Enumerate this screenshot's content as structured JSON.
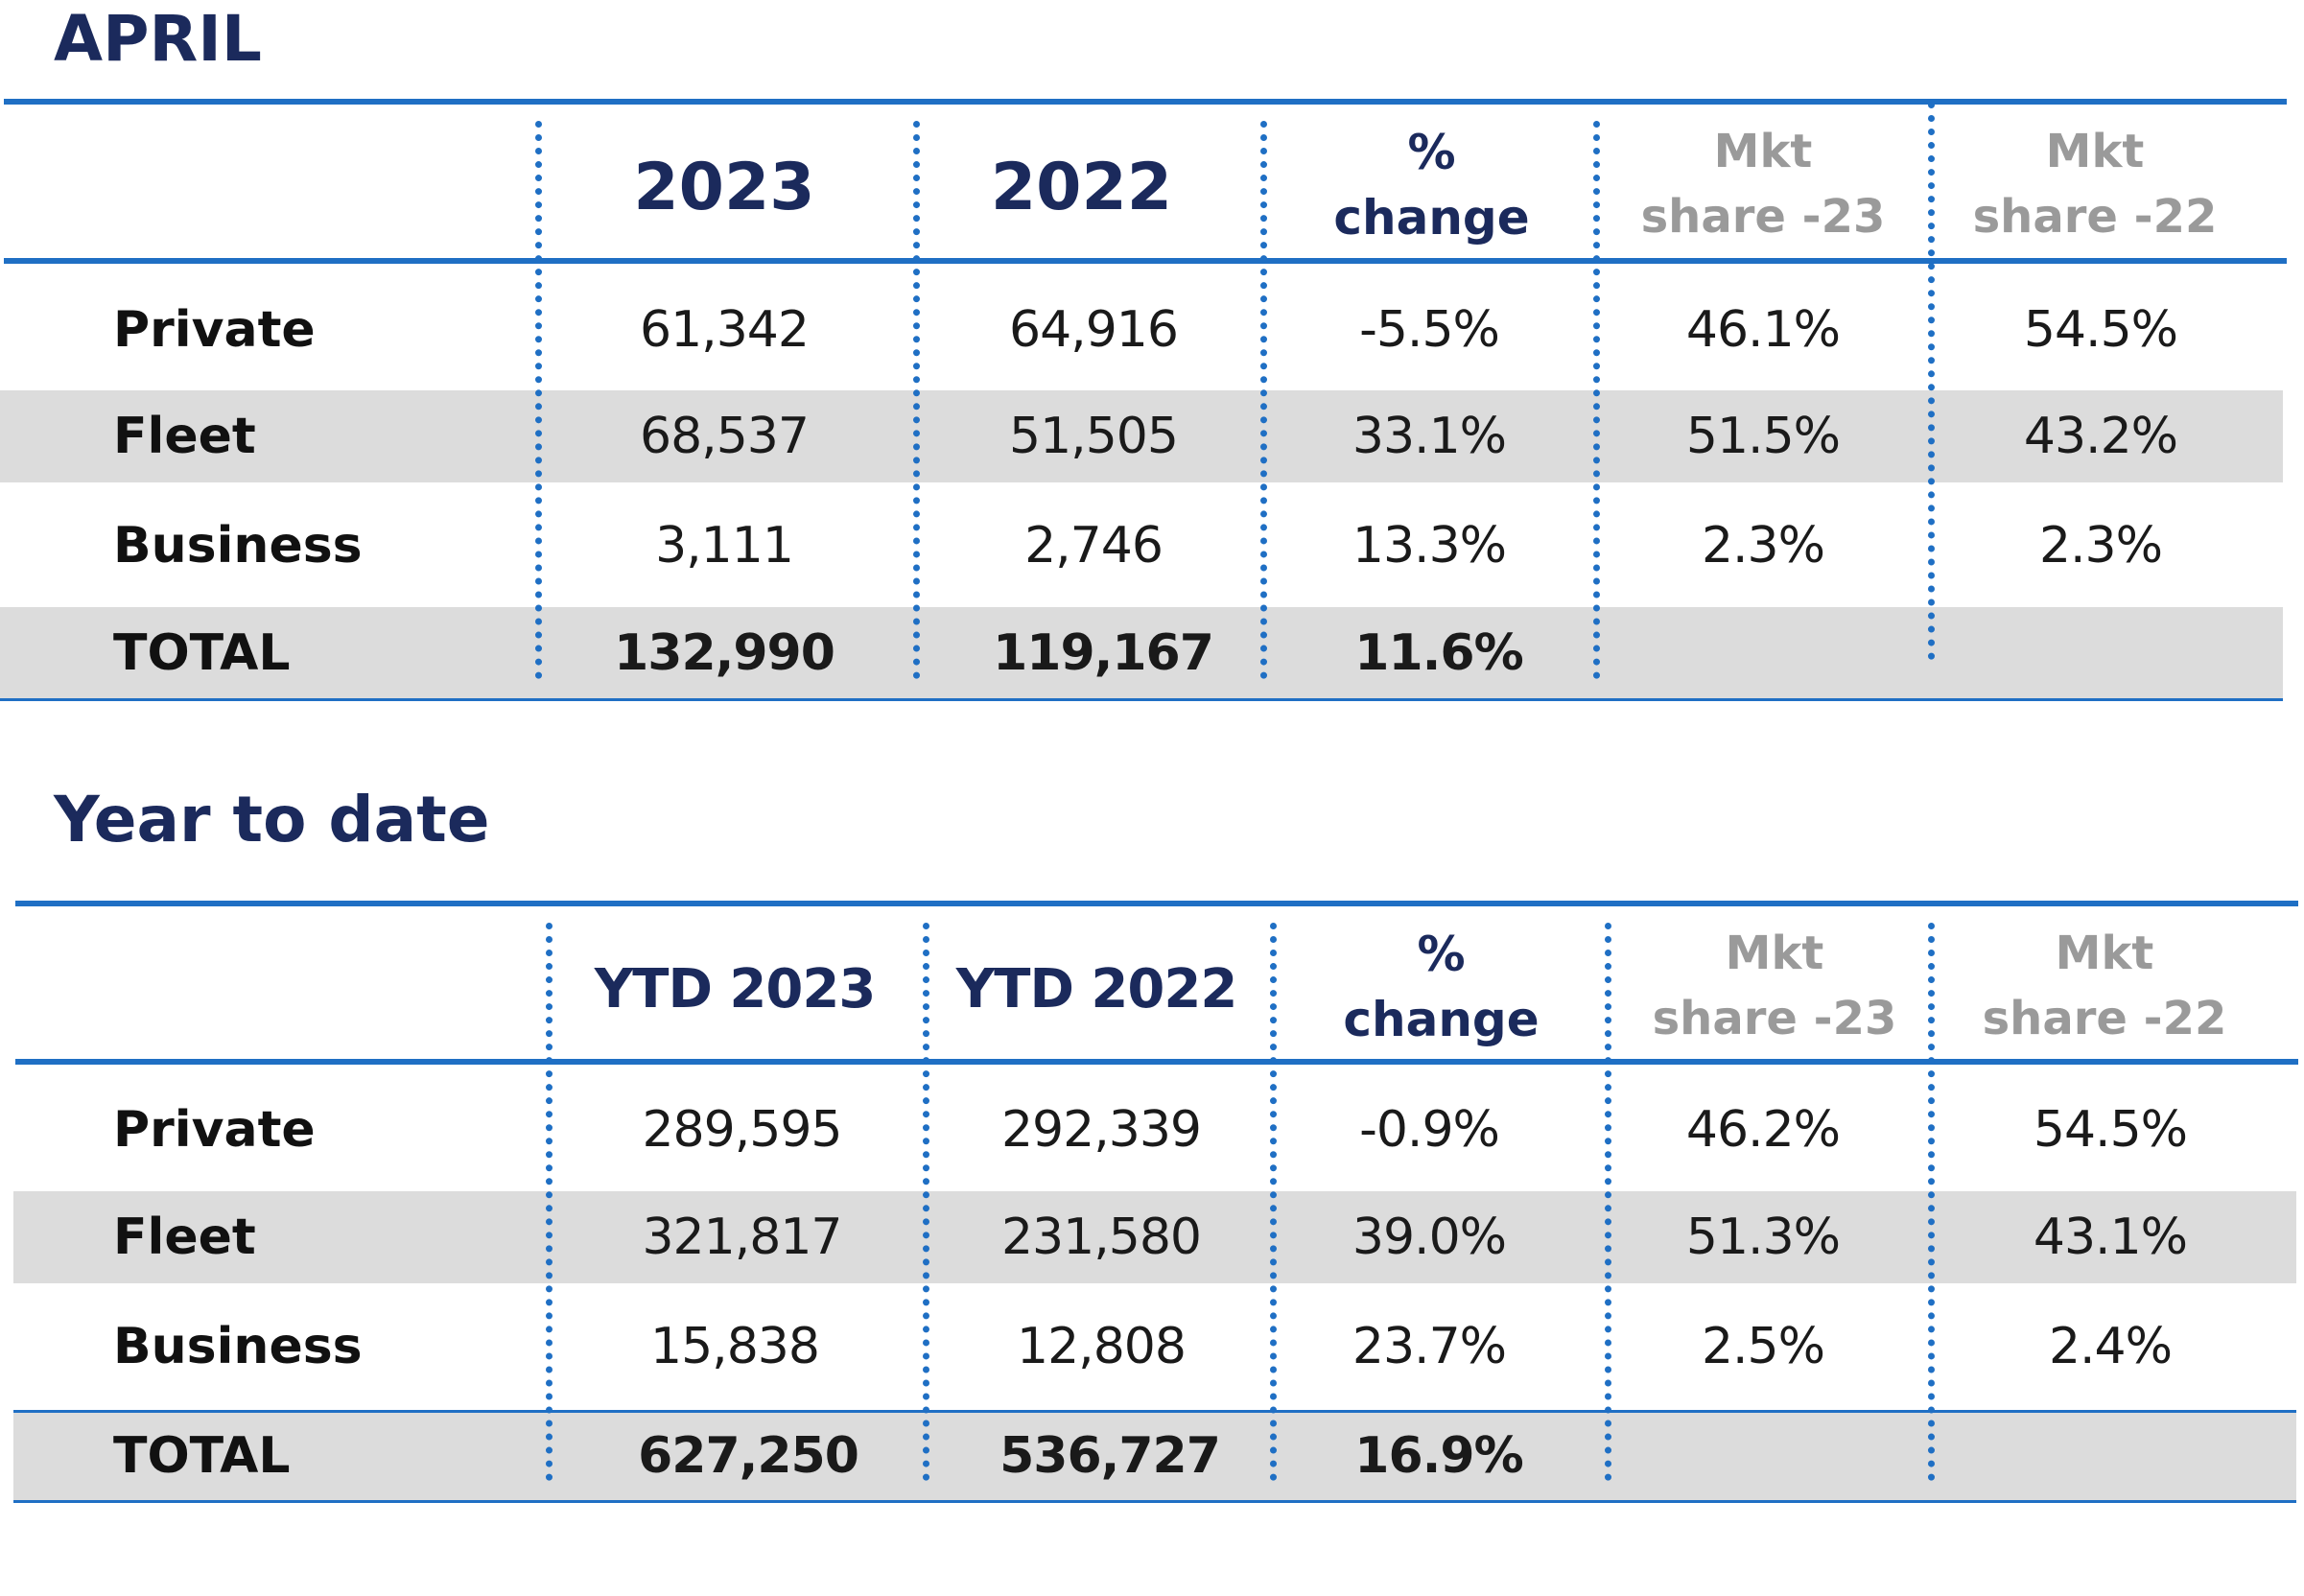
{
  "colors": {
    "title": "#1b2a5c",
    "accent_blue": "#1f6fc4",
    "band_gray": "#dcdcdc",
    "mkt_header_gray": "#9a9a9a"
  },
  "april": {
    "title": "APRIL",
    "headers": {
      "col1": "2023",
      "col2": "2022",
      "pct_line1": "%",
      "pct_line2": "change",
      "mkt23_line1": "Mkt",
      "mkt23_line2": "share -23",
      "mkt22_line1": "Mkt",
      "mkt22_line2": "share -22"
    },
    "rows": [
      {
        "label": "Private",
        "v2023": "61,342",
        "v2022": "64,916",
        "pct": "-5.5%",
        "mkt23": "46.1%",
        "mkt22": "54.5%"
      },
      {
        "label": "Fleet",
        "v2023": "68,537",
        "v2022": "51,505",
        "pct": "33.1%",
        "mkt23": "51.5%",
        "mkt22": "43.2%"
      },
      {
        "label": "Business",
        "v2023": "3,111",
        "v2022": "2,746",
        "pct": "13.3%",
        "mkt23": "2.3%",
        "mkt22": "2.3%"
      },
      {
        "label": "TOTAL",
        "v2023": "132,990",
        "v2022": "119,167",
        "pct": "11.6%",
        "mkt23": "",
        "mkt22": ""
      }
    ]
  },
  "ytd": {
    "title": "Year to date",
    "headers": {
      "col1": "YTD 2023",
      "col2": "YTD 2022",
      "pct_line1": "%",
      "pct_line2": "change",
      "mkt23_line1": "Mkt",
      "mkt23_line2": "share -23",
      "mkt22_line1": "Mkt",
      "mkt22_line2": "share -22"
    },
    "rows": [
      {
        "label": "Private",
        "v2023": "289,595",
        "v2022": "292,339",
        "pct": "-0.9%",
        "mkt23": "46.2%",
        "mkt22": "54.5%"
      },
      {
        "label": "Fleet",
        "v2023": "321,817",
        "v2022": "231,580",
        "pct": "39.0%",
        "mkt23": "51.3%",
        "mkt22": "43.1%"
      },
      {
        "label": "Business",
        "v2023": "15,838",
        "v2022": "12,808",
        "pct": "23.7%",
        "mkt23": "2.5%",
        "mkt22": "2.4%"
      },
      {
        "label": "TOTAL",
        "v2023": "627,250",
        "v2022": "536,727",
        "pct": "16.9%",
        "mkt23": "",
        "mkt22": ""
      }
    ]
  }
}
